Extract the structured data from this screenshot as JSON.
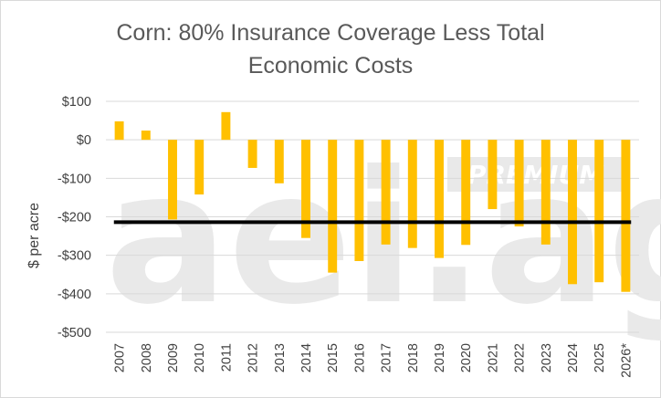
{
  "chart_data": {
    "type": "bar",
    "title_lines": [
      "Corn: 80% Insurance Coverage Less Total",
      "Economic Costs"
    ],
    "xlabel": "",
    "ylabel": "$ per acre",
    "ylim": [
      -500,
      100
    ],
    "yticks": [
      100,
      0,
      -100,
      -200,
      -300,
      -400,
      -500
    ],
    "ytick_labels": [
      "$100",
      "$0",
      "-$100",
      "-$200",
      "-$300",
      "-$400",
      "-$500"
    ],
    "categories": [
      "2007",
      "2008",
      "2009",
      "2010",
      "2011",
      "2012",
      "2013",
      "2014",
      "2015",
      "2016",
      "2017",
      "2018",
      "2019",
      "2020",
      "2021",
      "2022",
      "2023",
      "2024",
      "2025",
      "2026*"
    ],
    "values": [
      48,
      24,
      -207,
      -142,
      72,
      -73,
      -113,
      -255,
      -345,
      -315,
      -272,
      -281,
      -307,
      -273,
      -180,
      -225,
      -272,
      -375,
      -370,
      -395
    ],
    "reference_line": {
      "value": -214,
      "color": "#000000"
    },
    "bar_color": "#ffc000",
    "grid": true,
    "legend": "none"
  },
  "watermark": {
    "text": "aei.ag",
    "badge": "PREMIUM"
  },
  "colors": {
    "grid": "#d9d9d9",
    "watermark": "#e9e9e9",
    "title": "#595959",
    "axis_text": "#404040"
  }
}
